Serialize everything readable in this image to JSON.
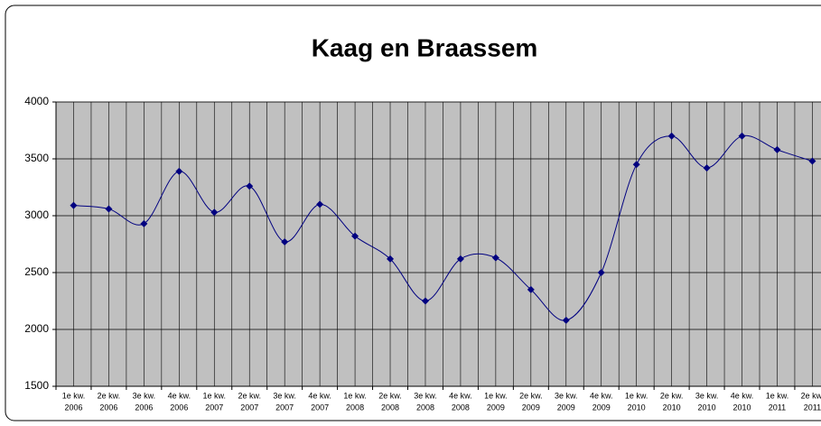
{
  "chart_data": {
    "type": "line",
    "title": "Kaag en Braassem",
    "categories": [
      [
        "1e kw.",
        "2006"
      ],
      [
        "2e kw.",
        "2006"
      ],
      [
        "3e kw.",
        "2006"
      ],
      [
        "4e kw.",
        "2006"
      ],
      [
        "1e kw.",
        "2007"
      ],
      [
        "2e kw.",
        "2007"
      ],
      [
        "3e kw.",
        "2007"
      ],
      [
        "4e kw.",
        "2007"
      ],
      [
        "1e kw.",
        "2008"
      ],
      [
        "2e kw.",
        "2008"
      ],
      [
        "3e kw.",
        "2008"
      ],
      [
        "4e kw.",
        "2008"
      ],
      [
        "1e kw.",
        "2009"
      ],
      [
        "2e kw.",
        "2009"
      ],
      [
        "3e kw.",
        "2009"
      ],
      [
        "4e kw.",
        "2009"
      ],
      [
        "1e kw.",
        "2010"
      ],
      [
        "2e kw.",
        "2010"
      ],
      [
        "3e kw.",
        "2010"
      ],
      [
        "4e kw.",
        "2010"
      ],
      [
        "1e kw.",
        "2011"
      ],
      [
        "2e kw.",
        "2011"
      ]
    ],
    "values": [
      3090,
      3060,
      2930,
      3390,
      3030,
      3260,
      2770,
      3100,
      2820,
      2620,
      2250,
      2620,
      2630,
      2350,
      2080,
      2500,
      3450,
      3700,
      3420,
      3700,
      3580,
      3480
    ],
    "color": "#000080",
    "ylim": [
      1500,
      4000
    ],
    "yticks": [
      1500,
      2000,
      2500,
      3000,
      3500,
      4000
    ],
    "grid": true,
    "smooth": true
  }
}
